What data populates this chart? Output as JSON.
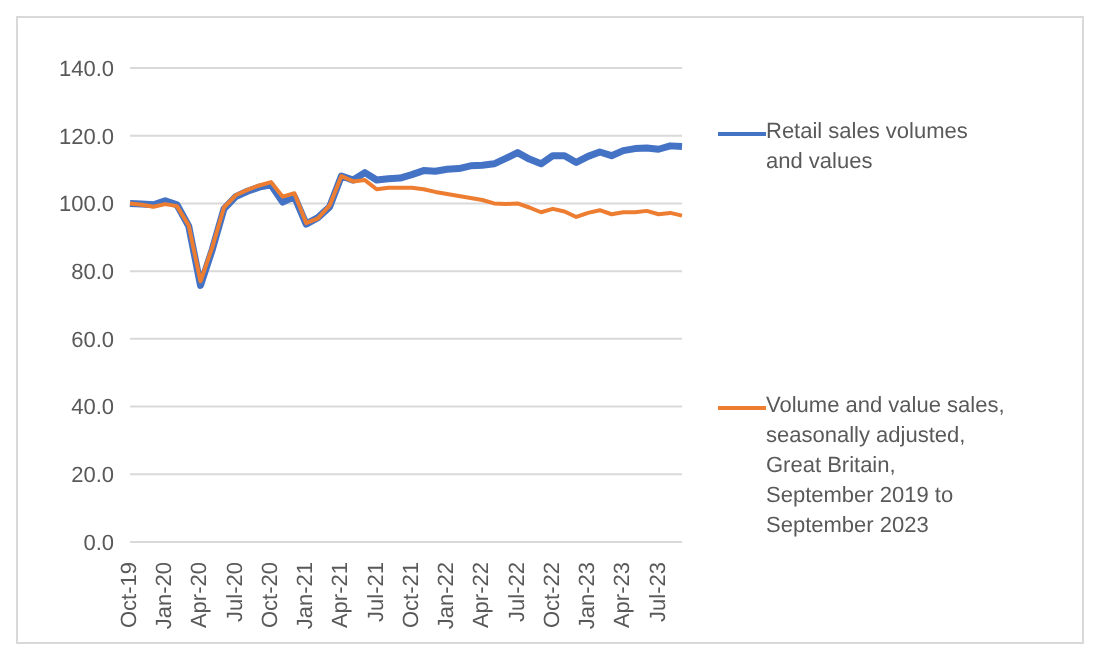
{
  "chart_data": {
    "type": "line",
    "categories": [
      "Oct-19",
      null,
      null,
      "Jan-20",
      null,
      null,
      "Apr-20",
      null,
      null,
      "Jul-20",
      null,
      null,
      "Oct-20",
      null,
      null,
      "Jan-21",
      null,
      null,
      "Apr-21",
      null,
      null,
      "Jul-21",
      null,
      null,
      "Oct-21",
      null,
      null,
      "Jan-22",
      null,
      null,
      "Apr-22",
      null,
      null,
      "Jul-22",
      null,
      null,
      "Oct-22",
      null,
      null,
      "Jan-23",
      null,
      null,
      "Apr-23",
      null,
      null,
      "Jul-23",
      null,
      null
    ],
    "series": [
      {
        "name": "Retail sales volumes and values",
        "color": "#4472c4",
        "values": [
          100,
          99.8,
          99.6,
          100.8,
          99.6,
          93.3,
          75.8,
          86.3,
          98.4,
          102,
          103.6,
          104.8,
          105.5,
          100.4,
          102,
          93.9,
          95.8,
          99,
          108.1,
          106.9,
          109.1,
          106.9,
          107.3,
          107.5,
          108.5,
          109.7,
          109.5,
          110.1,
          110.3,
          111.1,
          111.3,
          111.7,
          113.3,
          115,
          113.1,
          111.7,
          114.1,
          114.1,
          112.1,
          113.9,
          115.2,
          114.1,
          115.6,
          116.2,
          116.4,
          116,
          117,
          116.8
        ]
      },
      {
        "name": "Volume and value sales, seasonally adjusted, Great Britain, September 2019 to September 2023",
        "color": "#ed7d31",
        "values": [
          100,
          99.6,
          99,
          99.8,
          99.2,
          93.5,
          77,
          87,
          98.8,
          102.4,
          104,
          105.3,
          106.3,
          102,
          103,
          94.2,
          95.6,
          99.4,
          108.1,
          106.5,
          106.9,
          104.2,
          104.6,
          104.6,
          104.6,
          104.2,
          103.4,
          102.8,
          102.2,
          101.6,
          101,
          100,
          99.8,
          100,
          98.8,
          97.4,
          98.4,
          97.6,
          96,
          97.2,
          98,
          96.8,
          97.4,
          97.4,
          97.8,
          96.8,
          97.2,
          96.4
        ]
      }
    ],
    "ylim": [
      0,
      140
    ],
    "yticks": [
      {
        "value": 0,
        "label": "0.0"
      },
      {
        "value": 20,
        "label": "20.0"
      },
      {
        "value": 40,
        "label": "40.0"
      },
      {
        "value": 60,
        "label": "60.0"
      },
      {
        "value": 80,
        "label": "80.0"
      },
      {
        "value": 100,
        "label": "100.0"
      },
      {
        "value": 120,
        "label": "120.0"
      },
      {
        "value": 140,
        "label": "140.0"
      }
    ],
    "grid": "y",
    "legend": "right",
    "marker": "none",
    "line_style": "solid"
  }
}
